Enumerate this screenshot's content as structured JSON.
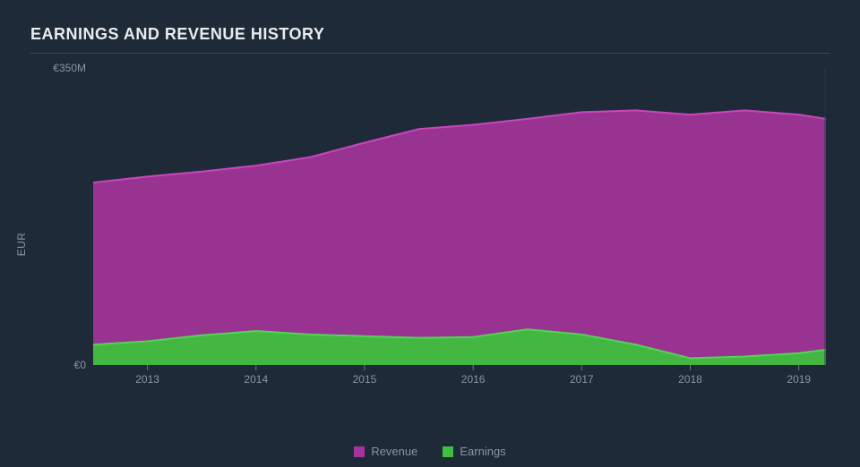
{
  "title": "EARNINGS AND REVENUE HISTORY",
  "chart": {
    "type": "area",
    "background_color": "#1e2a38",
    "plot_background": "#1e2a38",
    "title_color": "#e8ecef",
    "axis_label_color": "#8a95a0",
    "divider_color": "#3a4856",
    "ylabel": "EUR",
    "y_ticks": [
      {
        "value": 0,
        "label": "€0"
      },
      {
        "value": 350,
        "label": "€350M"
      }
    ],
    "ylim": [
      0,
      350
    ],
    "x_min": 2012.5,
    "x_max": 2019.25,
    "x_ticks": [
      2013,
      2014,
      2015,
      2016,
      2017,
      2018,
      2019
    ],
    "axis_tick_color": "#6a7682",
    "series": [
      {
        "name": "Revenue",
        "color": "#a3349a",
        "stroke": "#c847bd",
        "stroke_width": 2,
        "fill_opacity": 0.92,
        "x": [
          2012.5,
          2013,
          2013.5,
          2014,
          2014.5,
          2015,
          2015.5,
          2016,
          2016.5,
          2017,
          2017.5,
          2018,
          2018.5,
          2019,
          2019.25
        ],
        "y": [
          215,
          222,
          228,
          235,
          245,
          262,
          278,
          283,
          290,
          298,
          300,
          295,
          300,
          295,
          290
        ]
      },
      {
        "name": "Earnings",
        "color": "#3fbf3f",
        "stroke": "#52d452",
        "stroke_width": 2,
        "fill_opacity": 0.95,
        "x": [
          2012.5,
          2013,
          2013.5,
          2014,
          2014.5,
          2015,
          2015.5,
          2016,
          2016.5,
          2017,
          2017.5,
          2018,
          2018.5,
          2019,
          2019.25
        ],
        "y": [
          24,
          28,
          35,
          40,
          36,
          34,
          32,
          33,
          42,
          36,
          24,
          8,
          10,
          14,
          18
        ]
      }
    ],
    "legend": {
      "items": [
        {
          "label": "Revenue",
          "color": "#a3349a"
        },
        {
          "label": "Earnings",
          "color": "#3fbf3f"
        }
      ]
    },
    "font_family": "Arial, sans-serif",
    "tick_fontsize": 12,
    "title_fontsize": 18
  }
}
